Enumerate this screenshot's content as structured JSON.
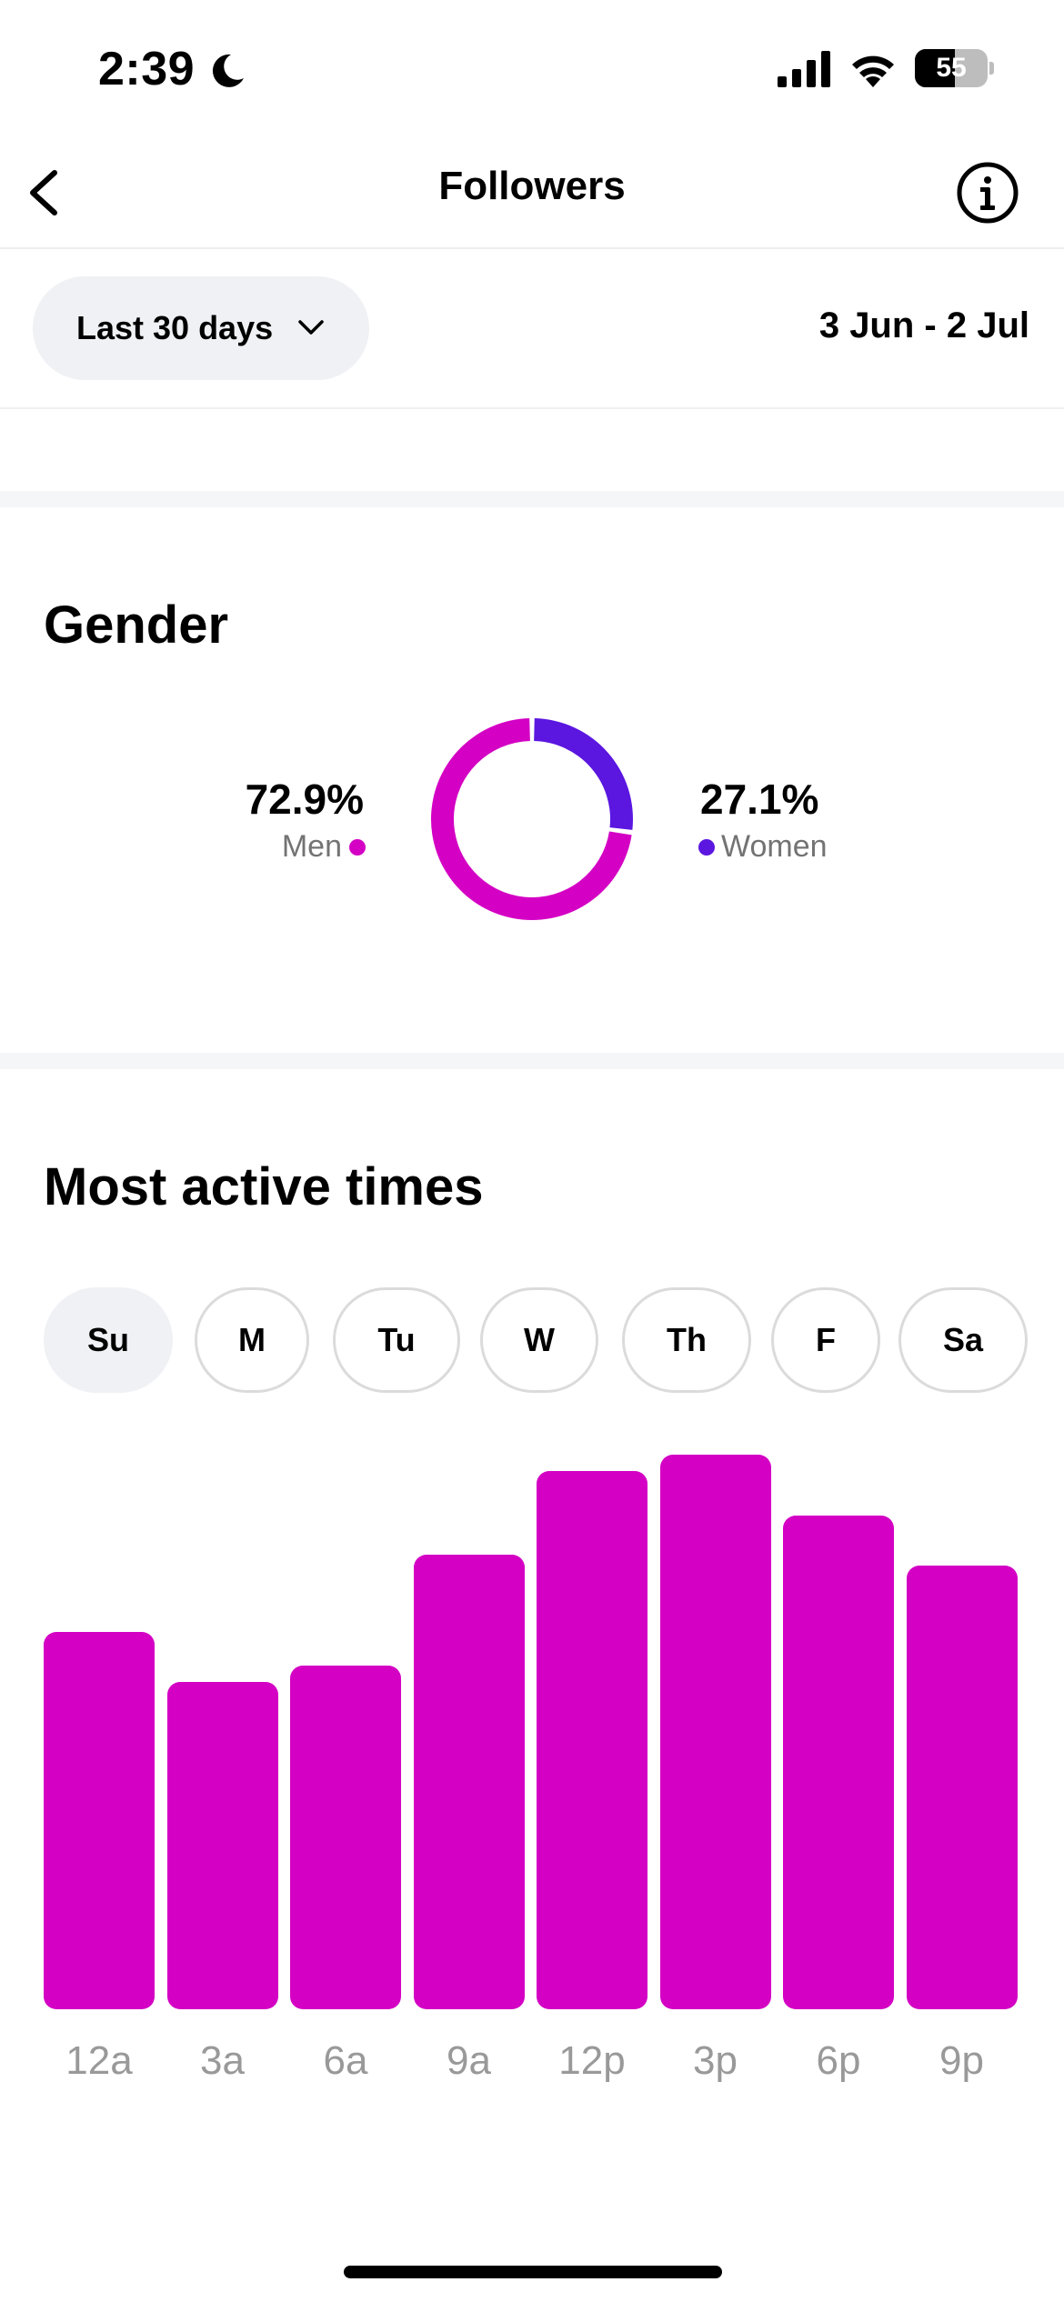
{
  "status_bar": {
    "time": "2:39",
    "battery_percent": 55,
    "battery_label": "55"
  },
  "header": {
    "title": "Followers"
  },
  "date_filter": {
    "range_label": "Last 30 days",
    "date_span": "3 Jun - 2 Jul"
  },
  "gender": {
    "title": "Gender",
    "men": {
      "value": "72.9%",
      "label": "Men",
      "color": "#d400c4"
    },
    "women": {
      "value": "27.1%",
      "label": "Women",
      "color": "#5b16e0"
    }
  },
  "active_times": {
    "title": "Most active times",
    "days": [
      "Su",
      "M",
      "Tu",
      "W",
      "Th",
      "F",
      "Sa"
    ],
    "selected_day": "Su"
  },
  "chart_data": [
    {
      "type": "pie",
      "categories": [
        "Men",
        "Women"
      ],
      "values": [
        72.9,
        27.1
      ],
      "colors": [
        "#d400c4",
        "#5b16e0"
      ]
    },
    {
      "type": "bar",
      "categories": [
        "12a",
        "3a",
        "6a",
        "9a",
        "12p",
        "3p",
        "6p",
        "9p"
      ],
      "values": [
        68,
        59,
        62,
        82,
        97,
        100,
        89,
        80
      ],
      "color": "#d400c4",
      "ylim": [
        0,
        100
      ]
    }
  ]
}
